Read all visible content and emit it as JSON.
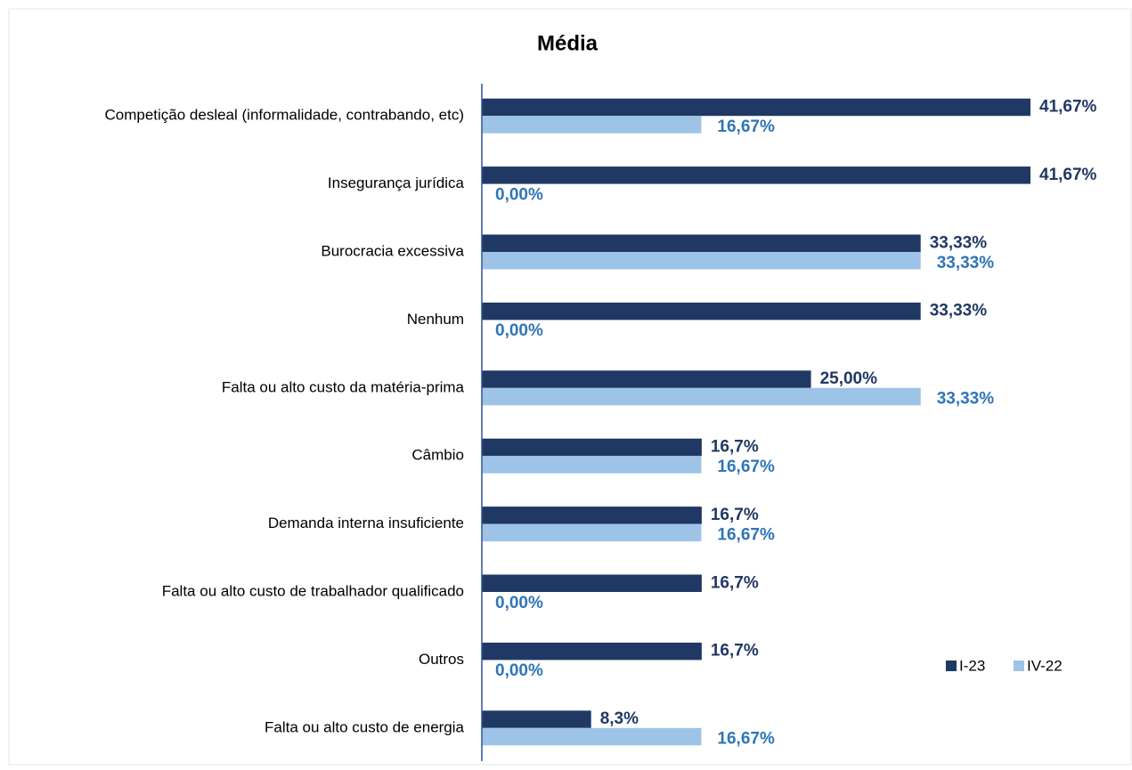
{
  "chart_data": {
    "type": "bar",
    "orientation": "horizontal",
    "title": "Média",
    "categories": [
      "Competição desleal (informalidade, contrabando, etc)",
      "Insegurança jurídica",
      "Burocracia excessiva",
      "Nenhum",
      "Falta ou alto custo da matéria-prima",
      "Câmbio",
      "Demanda interna insuficiente",
      "Falta ou alto custo de trabalhador qualificado",
      "Outros",
      "Falta ou alto custo de energia"
    ],
    "series": [
      {
        "name": "I-23",
        "color": "#203864",
        "label_color": "#203864",
        "values": [
          41.67,
          41.67,
          33.33,
          33.33,
          25.0,
          16.7,
          16.7,
          16.7,
          16.7,
          8.3
        ],
        "value_labels": [
          "41,67%",
          "41,67%",
          "33,33%",
          "33,33%",
          "25,00%",
          "16,7%",
          "16,7%",
          "16,7%",
          "16,7%",
          "8,3%"
        ]
      },
      {
        "name": "IV-22",
        "color": "#9dc3e6",
        "label_color": "#2e75b6",
        "values": [
          16.67,
          0,
          33.33,
          0,
          33.33,
          16.67,
          16.67,
          0,
          0,
          16.67
        ],
        "value_labels": [
          "16,67%",
          "0,00%",
          "33,33%",
          "0,00%",
          "33,33%",
          "16,67%",
          "16,67%",
          "0,00%",
          "0,00%",
          "16,67%"
        ]
      }
    ],
    "legend": "lower-right"
  }
}
